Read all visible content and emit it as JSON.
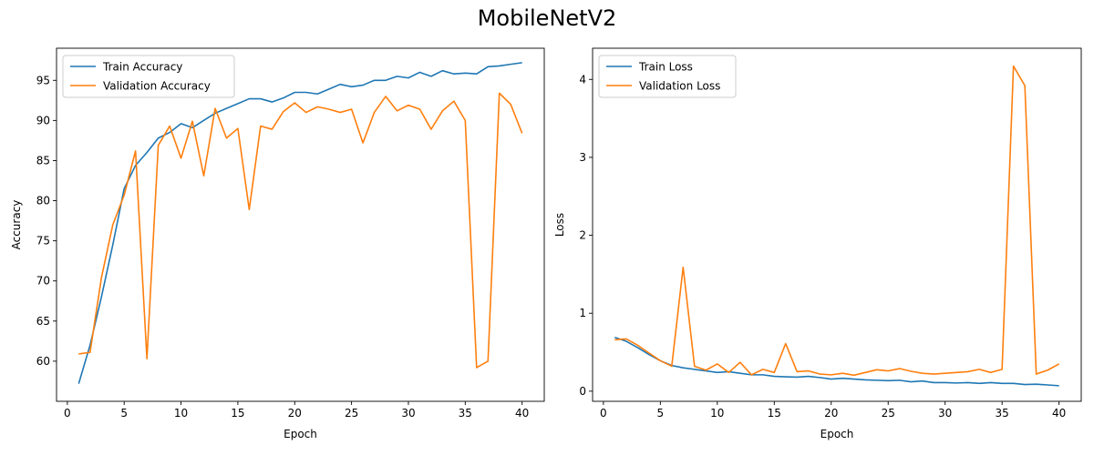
{
  "figure": {
    "title": "MobileNetV2"
  },
  "chart_data": [
    {
      "type": "line",
      "xlabel": "Epoch",
      "ylabel": "Accuracy",
      "xlim": [
        -0.95,
        41.95
      ],
      "ylim": [
        55.0,
        99.0
      ],
      "xticks": [
        0,
        5,
        10,
        15,
        20,
        25,
        30,
        35,
        40
      ],
      "yticks": [
        60,
        65,
        70,
        75,
        80,
        85,
        90,
        95
      ],
      "legend": "upper-left",
      "grid": false,
      "x": [
        1,
        2,
        3,
        4,
        5,
        6,
        7,
        8,
        9,
        10,
        11,
        12,
        13,
        14,
        15,
        16,
        17,
        18,
        19,
        20,
        21,
        22,
        23,
        24,
        25,
        26,
        27,
        28,
        29,
        30,
        31,
        32,
        33,
        34,
        35,
        36,
        37,
        38,
        39,
        40
      ],
      "series": [
        {
          "name": "Train Accuracy",
          "color": "#1f77b4",
          "values": [
            57.2,
            62.0,
            68.0,
            74.5,
            81.5,
            84.4,
            86.0,
            87.8,
            88.5,
            89.6,
            89.1,
            90.0,
            90.9,
            91.5,
            92.1,
            92.7,
            92.7,
            92.3,
            92.8,
            93.5,
            93.5,
            93.3,
            93.9,
            94.5,
            94.2,
            94.4,
            95.0,
            95.0,
            95.5,
            95.3,
            96.0,
            95.5,
            96.2,
            95.8,
            95.9,
            95.8,
            96.7,
            96.8,
            97.0,
            97.2
          ]
        },
        {
          "name": "Validation Accuracy",
          "color": "#ff7f0e",
          "values": [
            60.9,
            61.1,
            70.4,
            77.0,
            80.7,
            86.2,
            60.3,
            86.9,
            89.3,
            85.3,
            89.9,
            83.1,
            91.5,
            87.8,
            89.0,
            78.9,
            89.3,
            88.9,
            91.1,
            92.2,
            91.0,
            91.7,
            91.4,
            91.0,
            91.4,
            87.2,
            91.0,
            93.0,
            91.2,
            91.9,
            91.4,
            88.9,
            91.2,
            92.4,
            90.0,
            59.2,
            60.0,
            93.4,
            92.0,
            88.4
          ]
        }
      ]
    },
    {
      "type": "line",
      "xlabel": "Epoch",
      "ylabel": "Loss",
      "xlim": [
        -0.95,
        41.95
      ],
      "ylim": [
        -0.13,
        4.4
      ],
      "xticks": [
        0,
        5,
        10,
        15,
        20,
        25,
        30,
        35,
        40
      ],
      "yticks": [
        0,
        1,
        2,
        3,
        4
      ],
      "legend": "upper-left",
      "grid": false,
      "x": [
        1,
        2,
        3,
        4,
        5,
        6,
        7,
        8,
        9,
        10,
        11,
        12,
        13,
        14,
        15,
        16,
        17,
        18,
        19,
        20,
        21,
        22,
        23,
        24,
        25,
        26,
        27,
        28,
        29,
        30,
        31,
        32,
        33,
        34,
        35,
        36,
        37,
        38,
        39,
        40
      ],
      "series": [
        {
          "name": "Train Loss",
          "color": "#1f77b4",
          "values": [
            0.69,
            0.64,
            0.56,
            0.47,
            0.39,
            0.33,
            0.3,
            0.28,
            0.26,
            0.24,
            0.25,
            0.23,
            0.21,
            0.21,
            0.19,
            0.185,
            0.18,
            0.19,
            0.175,
            0.155,
            0.165,
            0.155,
            0.145,
            0.14,
            0.135,
            0.14,
            0.12,
            0.13,
            0.11,
            0.11,
            0.105,
            0.11,
            0.1,
            0.11,
            0.1,
            0.1,
            0.085,
            0.09,
            0.08,
            0.07
          ]
        },
        {
          "name": "Validation Loss",
          "color": "#ff7f0e",
          "values": [
            0.66,
            0.67,
            0.59,
            0.49,
            0.39,
            0.32,
            1.59,
            0.32,
            0.27,
            0.35,
            0.24,
            0.37,
            0.21,
            0.28,
            0.24,
            0.61,
            0.25,
            0.26,
            0.22,
            0.21,
            0.23,
            0.205,
            0.24,
            0.275,
            0.26,
            0.29,
            0.255,
            0.23,
            0.22,
            0.23,
            0.24,
            0.25,
            0.28,
            0.24,
            0.28,
            4.17,
            3.92,
            0.22,
            0.27,
            0.35
          ]
        }
      ]
    }
  ]
}
